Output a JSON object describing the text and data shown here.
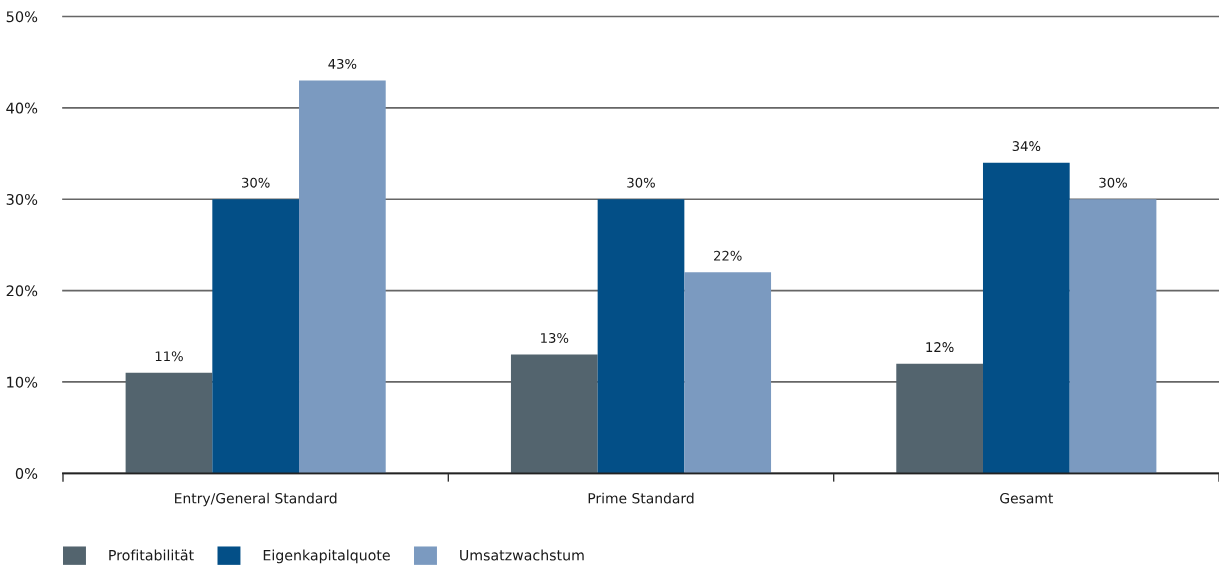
{
  "chart_data": {
    "type": "bar",
    "categories": [
      "Entry/General Standard",
      "Prime Standard",
      "Gesamt"
    ],
    "series": [
      {
        "name": "Profitabilität",
        "color": "#53646e",
        "values": [
          11,
          13,
          12
        ],
        "value_labels": [
          "11%",
          "13%",
          "12%"
        ]
      },
      {
        "name": "Eigenkapitalquote",
        "color": "#034f87",
        "values": [
          30,
          30,
          34
        ],
        "value_labels": [
          "30%",
          "30%",
          "34%"
        ]
      },
      {
        "name": "Umsatzwachstum",
        "color": "#7b9ac0",
        "values": [
          43,
          22,
          30
        ],
        "value_labels": [
          "43%",
          "22%",
          "30%"
        ]
      }
    ],
    "ylim": [
      0,
      50
    ],
    "yticks": [
      {
        "value": 0,
        "label": "0%"
      },
      {
        "value": 10,
        "label": "10%"
      },
      {
        "value": 20,
        "label": "20%"
      },
      {
        "value": 30,
        "label": "30%"
      },
      {
        "value": 40,
        "label": "40%"
      },
      {
        "value": 50,
        "label": "50%"
      }
    ],
    "grid": "y",
    "legend": "bottom left"
  }
}
